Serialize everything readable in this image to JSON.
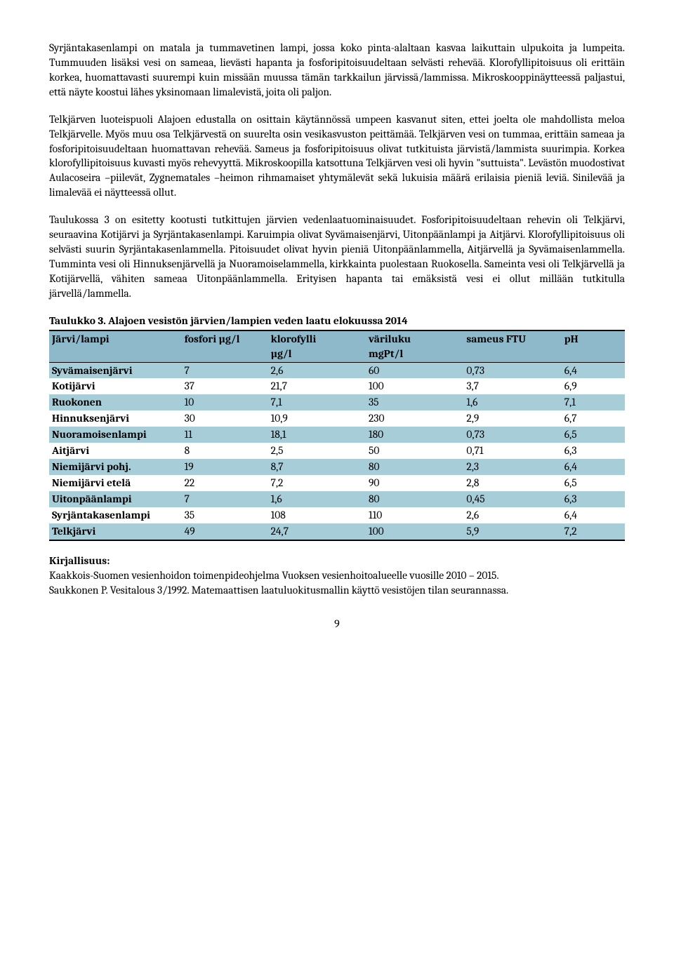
{
  "paragraphs": {
    "p1": "Syrjäntakasenlampi on matala ja tummavetinen lampi, jossa koko pinta-alaltaan kasvaa laikuttain ulpukoita ja lumpeita. Tummuuden lisäksi vesi on sameaa, lievästi hapanta ja fosforipitoisuudeltaan selvästi rehevää. Klorofyllipitoisuus oli erittäin korkea, huomattavasti suurempi kuin missään muussa tämän tarkkailun järvissä/lammissa. Mikroskooppinäytteessä paljastui, että näyte koostui lähes yksinomaan limalevistä, joita oli paljon.",
    "p2": "Telkjärven luoteispuoli Alajoen edustalla on osittain käytännössä umpeen kasvanut siten, ettei joelta ole mahdollista meloa Telkjärvelle. Myös muu osa Telkjärvestä on suurelta osin vesikasvuston peittämää. Telkjärven vesi on tummaa, erittäin sameaa ja fosforipitoisuudeltaan huomattavan rehevää. Sameus ja fosforipitoisuus olivat tutkituista järvistä/lammista suurimpia. Korkea klorofyllipitoisuus kuvasti myös rehevyyttä. Mikroskoopilla katsottuna Telkjärven vesi oli hyvin \"suttuista\". Levästön muodostivat Aulacoseira –piilevät, Zygnematales –heimon rihmamaiset yhtymälevät sekä lukuisia määrä erilaisia pieniä leviä. Sinilevää ja limalevää ei näytteessä ollut.",
    "p3": "Taulukossa 3 on esitetty kootusti tutkittujen järvien vedenlaatuominaisuudet. Fosforipitoisuudeltaan rehevin oli Telkjärvi, seuraavina Kotijärvi ja Syrjäntakasenlampi. Karuimpia olivat Syvämaisenjärvi, Uitonpäänlampi ja Aitjärvi. Klorofyllipitoisuus oli selvästi suurin Syrjäntakasenlammella. Pitoisuudet olivat hyvin pieniä Uitonpäänlammella, Aitjärvellä ja Syvämaisenlammella. Tumminta vesi oli Hinnuksenjärvellä ja Nuoramoiselammella, kirkkainta puolestaan Ruokosella. Sameinta vesi oli Telkjärvellä ja Kotijärvellä, vähiten sameaa Uitonpäänlammella. Erityisen hapanta tai emäksistä vesi ei ollut millään tutkitulla järvellä/lammella."
  },
  "table": {
    "title": "Taulukko 3. Alajoen vesistön järvien/lampien veden laatu elokuussa 2014",
    "headers": {
      "name": "Järvi/lampi",
      "fosfori": "fosfori µg/l",
      "klorofylli_l1": "klorofylli",
      "klorofylli_l2": "µg/l",
      "variluku_l1": "väriluku",
      "variluku_l2": "mgPt/l",
      "sameus": "sameus FTU",
      "ph": "pH"
    },
    "rows": [
      {
        "name": "Syvämaisenjärvi",
        "fosfori": "7",
        "klorofylli": "2,6",
        "variluku": "60",
        "sameus": "0,73",
        "ph": "6,4",
        "cls": "row-light"
      },
      {
        "name": "Kotijärvi",
        "fosfori": "37",
        "klorofylli": "21,7",
        "variluku": "100",
        "sameus": "3,7",
        "ph": "6,9",
        "cls": "row-white"
      },
      {
        "name": "Ruokonen",
        "fosfori": "10",
        "klorofylli": "7,1",
        "variluku": "35",
        "sameus": "1,6",
        "ph": "7,1",
        "cls": "row-light"
      },
      {
        "name": "Hinnuksenjärvi",
        "fosfori": "30",
        "klorofylli": "10,9",
        "variluku": "230",
        "sameus": "2,9",
        "ph": "6,7",
        "cls": "row-white"
      },
      {
        "name": "Nuoramoisenlampi",
        "fosfori": "11",
        "klorofylli": "18,1",
        "variluku": "180",
        "sameus": "0,73",
        "ph": "6,5",
        "cls": "row-light"
      },
      {
        "name": "Aitjärvi",
        "fosfori": "8",
        "klorofylli": "2,5",
        "variluku": "50",
        "sameus": "0,71",
        "ph": "6,3",
        "cls": "row-white"
      },
      {
        "name": "Niemijärvi pohj.",
        "fosfori": "19",
        "klorofylli": "8,7",
        "variluku": "80",
        "sameus": "2,3",
        "ph": "6,4",
        "cls": "row-light"
      },
      {
        "name": "Niemijärvi etelä",
        "fosfori": "22",
        "klorofylli": "7,2",
        "variluku": "90",
        "sameus": "2,8",
        "ph": "6,5",
        "cls": "row-white"
      },
      {
        "name": "Uitonpäänlampi",
        "fosfori": "7",
        "klorofylli": "1,6",
        "variluku": "80",
        "sameus": "0,45",
        "ph": "6,3",
        "cls": "row-light"
      },
      {
        "name": "Syrjäntakasenlampi",
        "fosfori": "35",
        "klorofylli": "108",
        "variluku": "110",
        "sameus": "2,6",
        "ph": "6,4",
        "cls": "row-white"
      },
      {
        "name": "Telkjärvi",
        "fosfori": "49",
        "klorofylli": "24,7",
        "variluku": "100",
        "sameus": "5,9",
        "ph": "7,2",
        "cls": "row-light"
      }
    ]
  },
  "biblio": {
    "title": "Kirjallisuus:",
    "line1": "Kaakkois-Suomen vesienhoidon toimenpideohjelma Vuoksen vesienhoitoalueelle vuosille 2010 – 2015.",
    "line2": "Saukkonen P. Vesitalous 3/1992. Matemaattisen laatuluokitusmallin käyttö vesistöjen tilan seurannassa."
  },
  "page_number": "9"
}
